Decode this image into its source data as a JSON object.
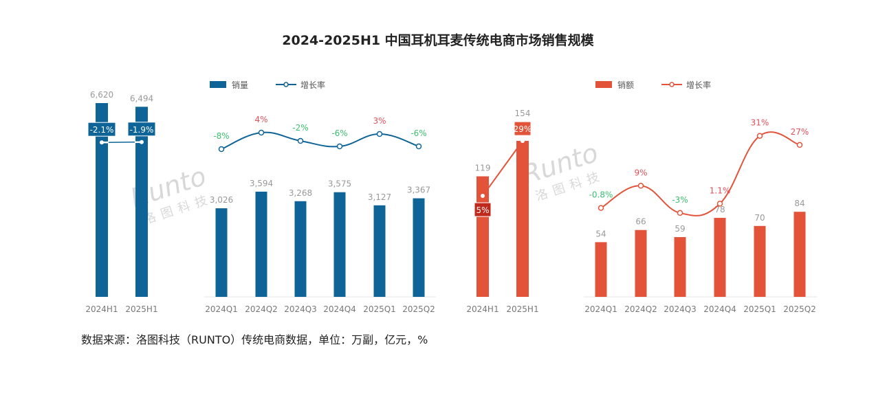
{
  "title": "2024-2025H1 中国耳机耳麦传统电商市场销售规模",
  "footer": "数据来源：洛图科技（RUNTO）传统电商数据，单位：万副，亿元，%",
  "watermark": {
    "text": "Runto",
    "sub": "洛图科技"
  },
  "chart_data": [
    {
      "type": "bar+line",
      "legend": [
        "销量",
        "增长率"
      ],
      "legend_placement": "top",
      "color": "#0e6496",
      "categories": [
        "2024H1",
        "2025H1",
        "2024Q1",
        "2024Q2",
        "2024Q3",
        "2024Q4",
        "2025Q1",
        "2025Q2"
      ],
      "bars": {
        "name": "销量",
        "labels": [
          "6,620",
          "6,494",
          "3,026",
          "3,594",
          "3,268",
          "3,575",
          "3,127",
          "3,367"
        ],
        "values": [
          6620,
          6494,
          3026,
          3594,
          3268,
          3575,
          3127,
          3367
        ]
      },
      "growth": {
        "name": "增长率",
        "labels": [
          "-2.1%",
          "-1.9%",
          "-8%",
          "4%",
          "-2%",
          "-6%",
          "3%",
          "-6%"
        ],
        "values": [
          -2.1,
          -1.9,
          -8,
          4,
          -2,
          -6,
          3,
          -6
        ]
      }
    },
    {
      "type": "bar+line",
      "legend": [
        "销额",
        "增长率"
      ],
      "legend_placement": "top",
      "color": "#e2533a",
      "categories": [
        "2024H1",
        "2025H1",
        "2024Q1",
        "2024Q2",
        "2024Q3",
        "2024Q4",
        "2025Q1",
        "2025Q2"
      ],
      "bars": {
        "name": "销额",
        "labels": [
          "119",
          "154",
          "54",
          "66",
          "59",
          "78",
          "70",
          "84"
        ],
        "values": [
          119,
          154,
          54,
          66,
          59,
          78,
          70,
          84
        ]
      },
      "growth": {
        "name": "增长率",
        "labels": [
          "5%",
          "29%",
          "-0.8%",
          "9%",
          "-3%",
          "1.1%",
          "31%",
          "27%"
        ],
        "values": [
          5,
          29,
          -0.8,
          9,
          -3,
          1.1,
          31,
          27
        ]
      }
    }
  ]
}
